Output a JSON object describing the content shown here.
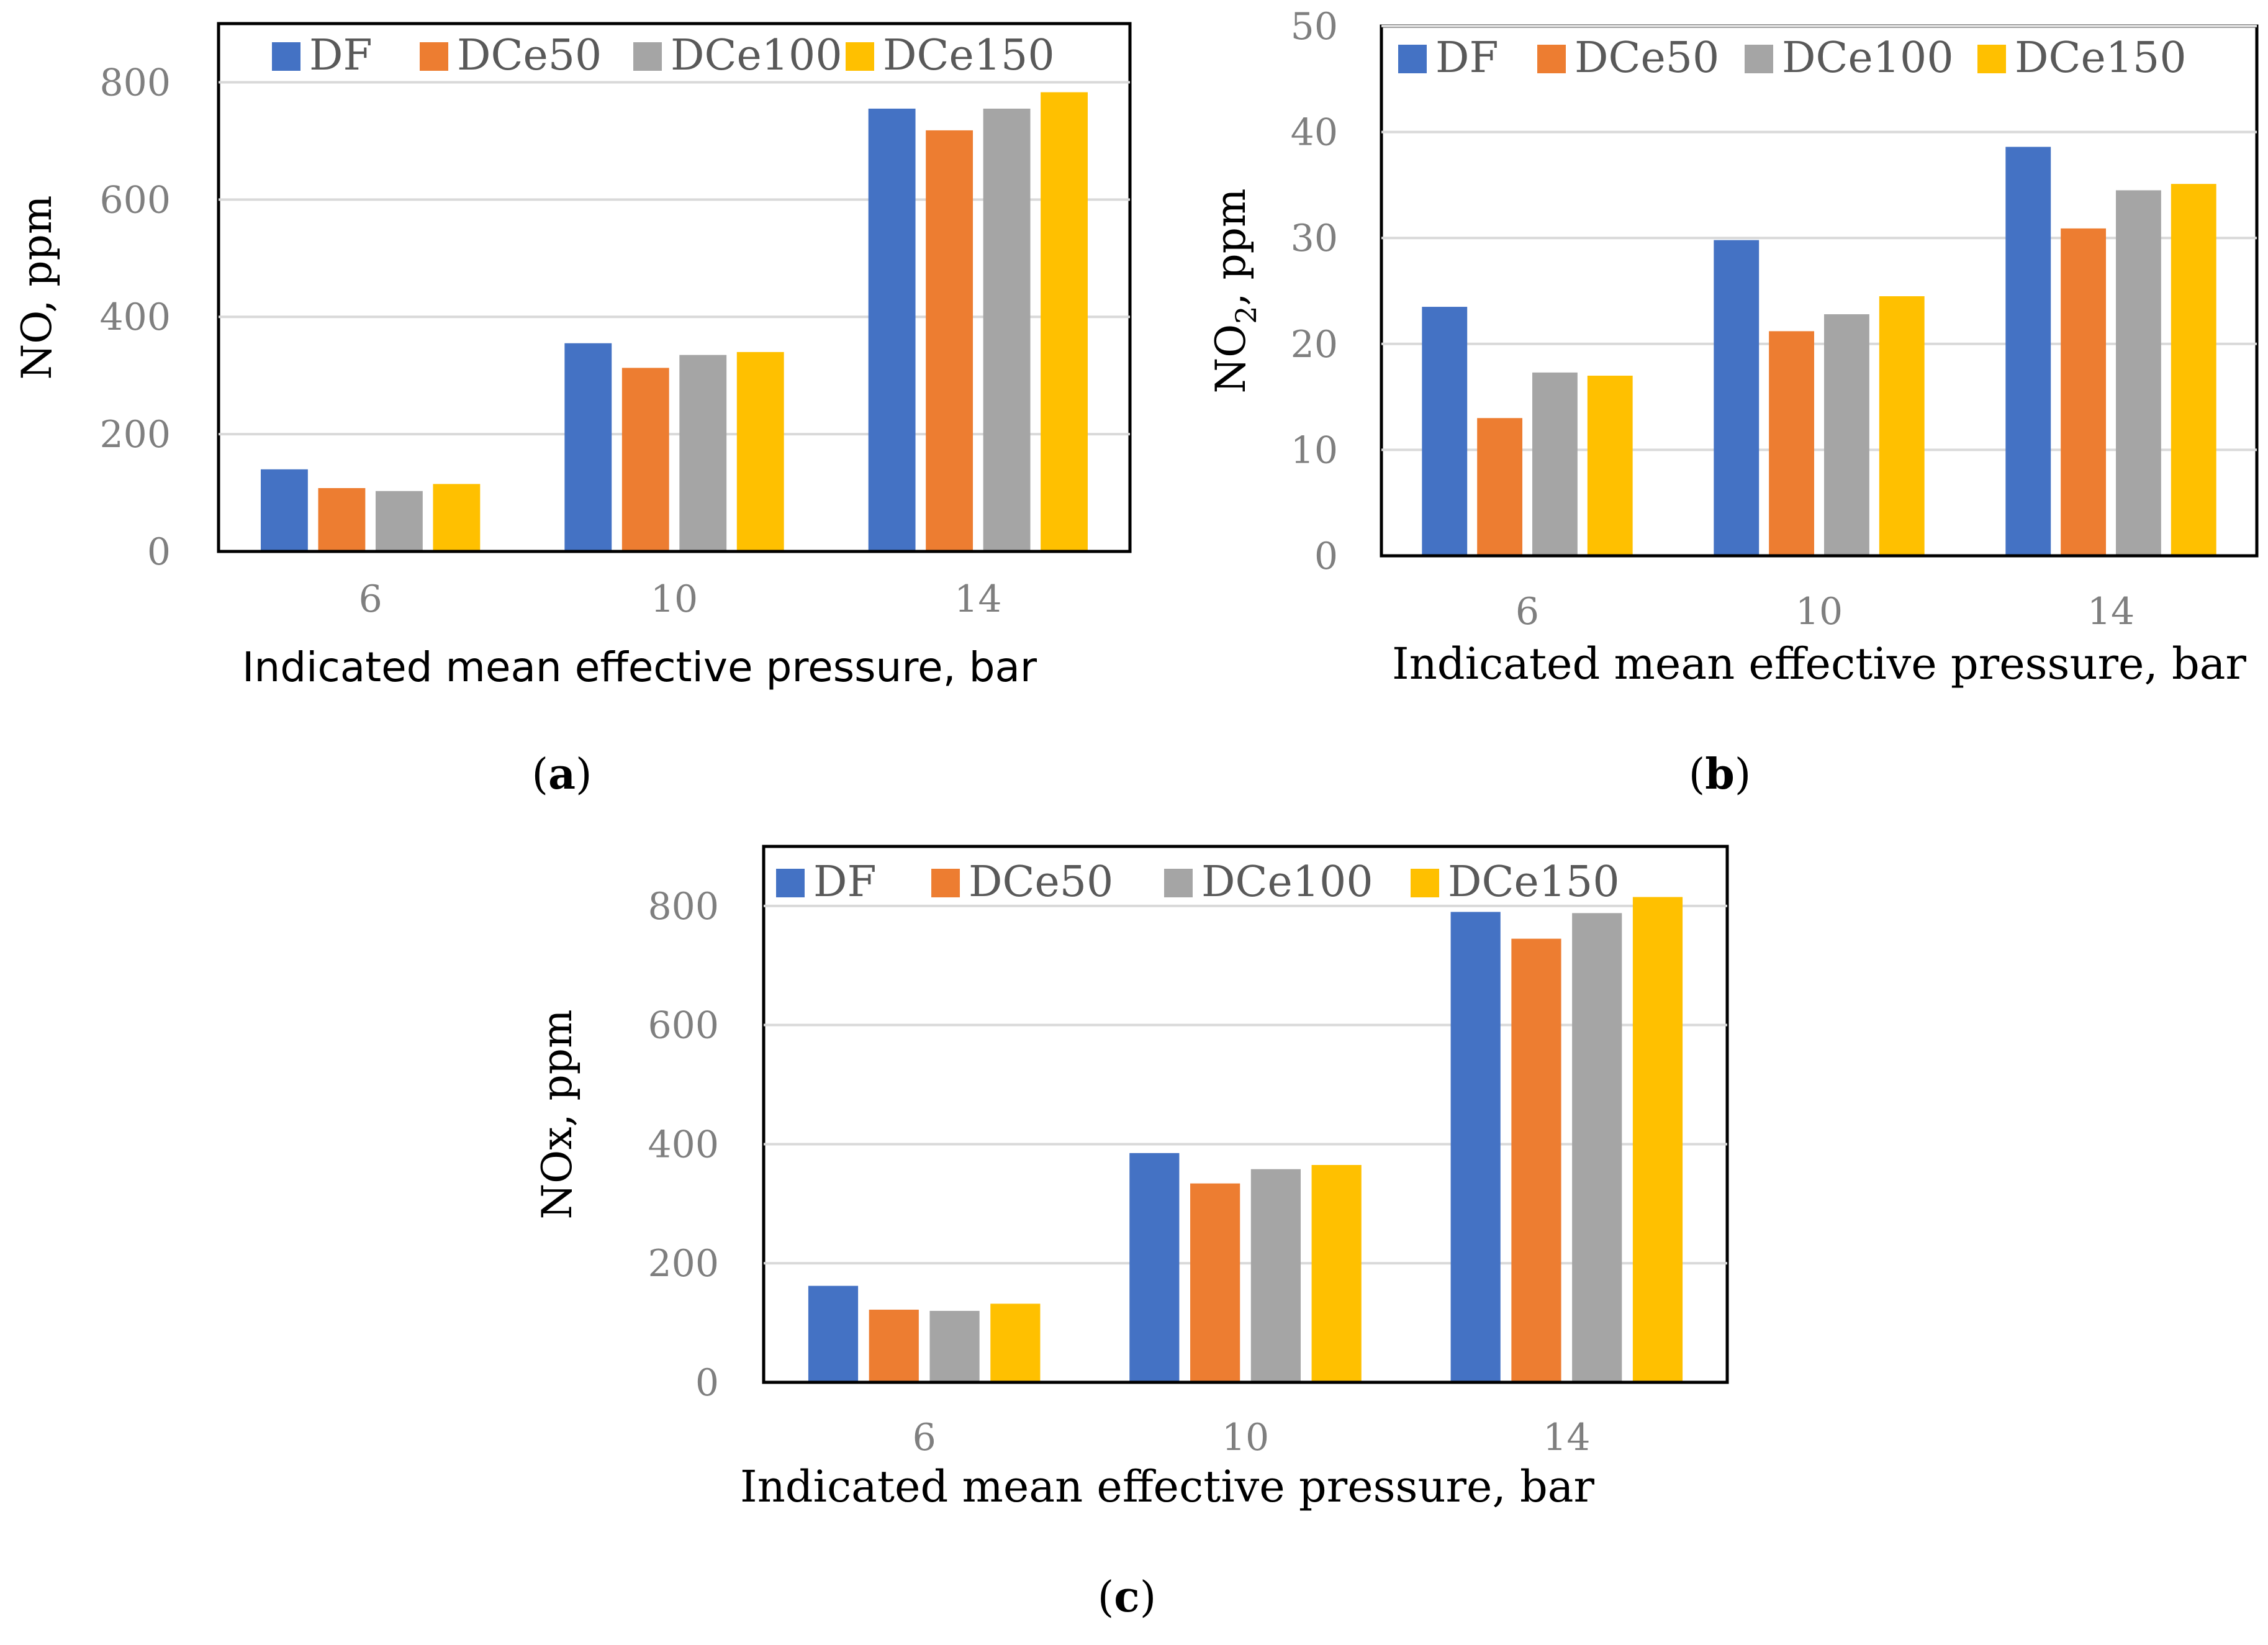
{
  "colors": {
    "DF": "#4472c4",
    "DCe50": "#ed7d31",
    "DCe100": "#a5a5a5",
    "DCe150": "#ffc000",
    "grid": "#d9d9d9",
    "axis": "#000000"
  },
  "chart_data": [
    {
      "id": "a",
      "type": "bar",
      "panel_label": {
        "open": "(",
        "letter": "a",
        "close": ")"
      },
      "categories": [
        "6",
        "10",
        "14"
      ],
      "series": [
        {
          "name": "DF",
          "values": [
            140,
            355,
            755
          ]
        },
        {
          "name": "DCe50",
          "values": [
            108,
            313,
            718
          ]
        },
        {
          "name": "DCe100",
          "values": [
            103,
            335,
            755
          ]
        },
        {
          "name": "DCe150",
          "values": [
            115,
            340,
            783
          ]
        }
      ],
      "ylim": [
        0,
        900
      ],
      "yticks": [
        0,
        200,
        400,
        600,
        800
      ],
      "ylabel": {
        "main": "NO, ppm",
        "sub": ""
      },
      "xlabel": "Indicated mean effective pressure, bar",
      "grid": true,
      "legend": "top"
    },
    {
      "id": "b",
      "type": "bar",
      "panel_label": {
        "open": "(",
        "letter": "b",
        "close": ")"
      },
      "categories": [
        "6",
        "10",
        "14"
      ],
      "series": [
        {
          "name": "DF",
          "values": [
            23.5,
            29.8,
            38.6
          ]
        },
        {
          "name": "DCe50",
          "values": [
            13.0,
            21.2,
            30.9
          ]
        },
        {
          "name": "DCe100",
          "values": [
            17.3,
            22.8,
            34.5
          ]
        },
        {
          "name": "DCe150",
          "values": [
            17.0,
            24.5,
            35.1
          ]
        }
      ],
      "ylim": [
        0,
        50
      ],
      "yticks": [
        0,
        10,
        20,
        30,
        40,
        50
      ],
      "ylabel": {
        "main_pre": "NO",
        "sub": "2",
        "main_post": ", ppm"
      },
      "xlabel": "Indicated mean effective pressure, bar",
      "grid": true,
      "legend": "top"
    },
    {
      "id": "c",
      "type": "bar",
      "panel_label": {
        "open": "(",
        "letter": "c",
        "close": ")"
      },
      "categories": [
        "6",
        "10",
        "14"
      ],
      "series": [
        {
          "name": "DF",
          "values": [
            162,
            385,
            790
          ]
        },
        {
          "name": "DCe50",
          "values": [
            122,
            334,
            745
          ]
        },
        {
          "name": "DCe100",
          "values": [
            120,
            358,
            788
          ]
        },
        {
          "name": "DCe150",
          "values": [
            132,
            365,
            815
          ]
        }
      ],
      "ylim": [
        0,
        900
      ],
      "yticks": [
        0,
        200,
        400,
        600,
        800
      ],
      "ylabel": {
        "main": "NOx, ppm",
        "sub": ""
      },
      "xlabel": "Indicated mean effective pressure, bar",
      "grid": true,
      "legend": "top"
    }
  ]
}
